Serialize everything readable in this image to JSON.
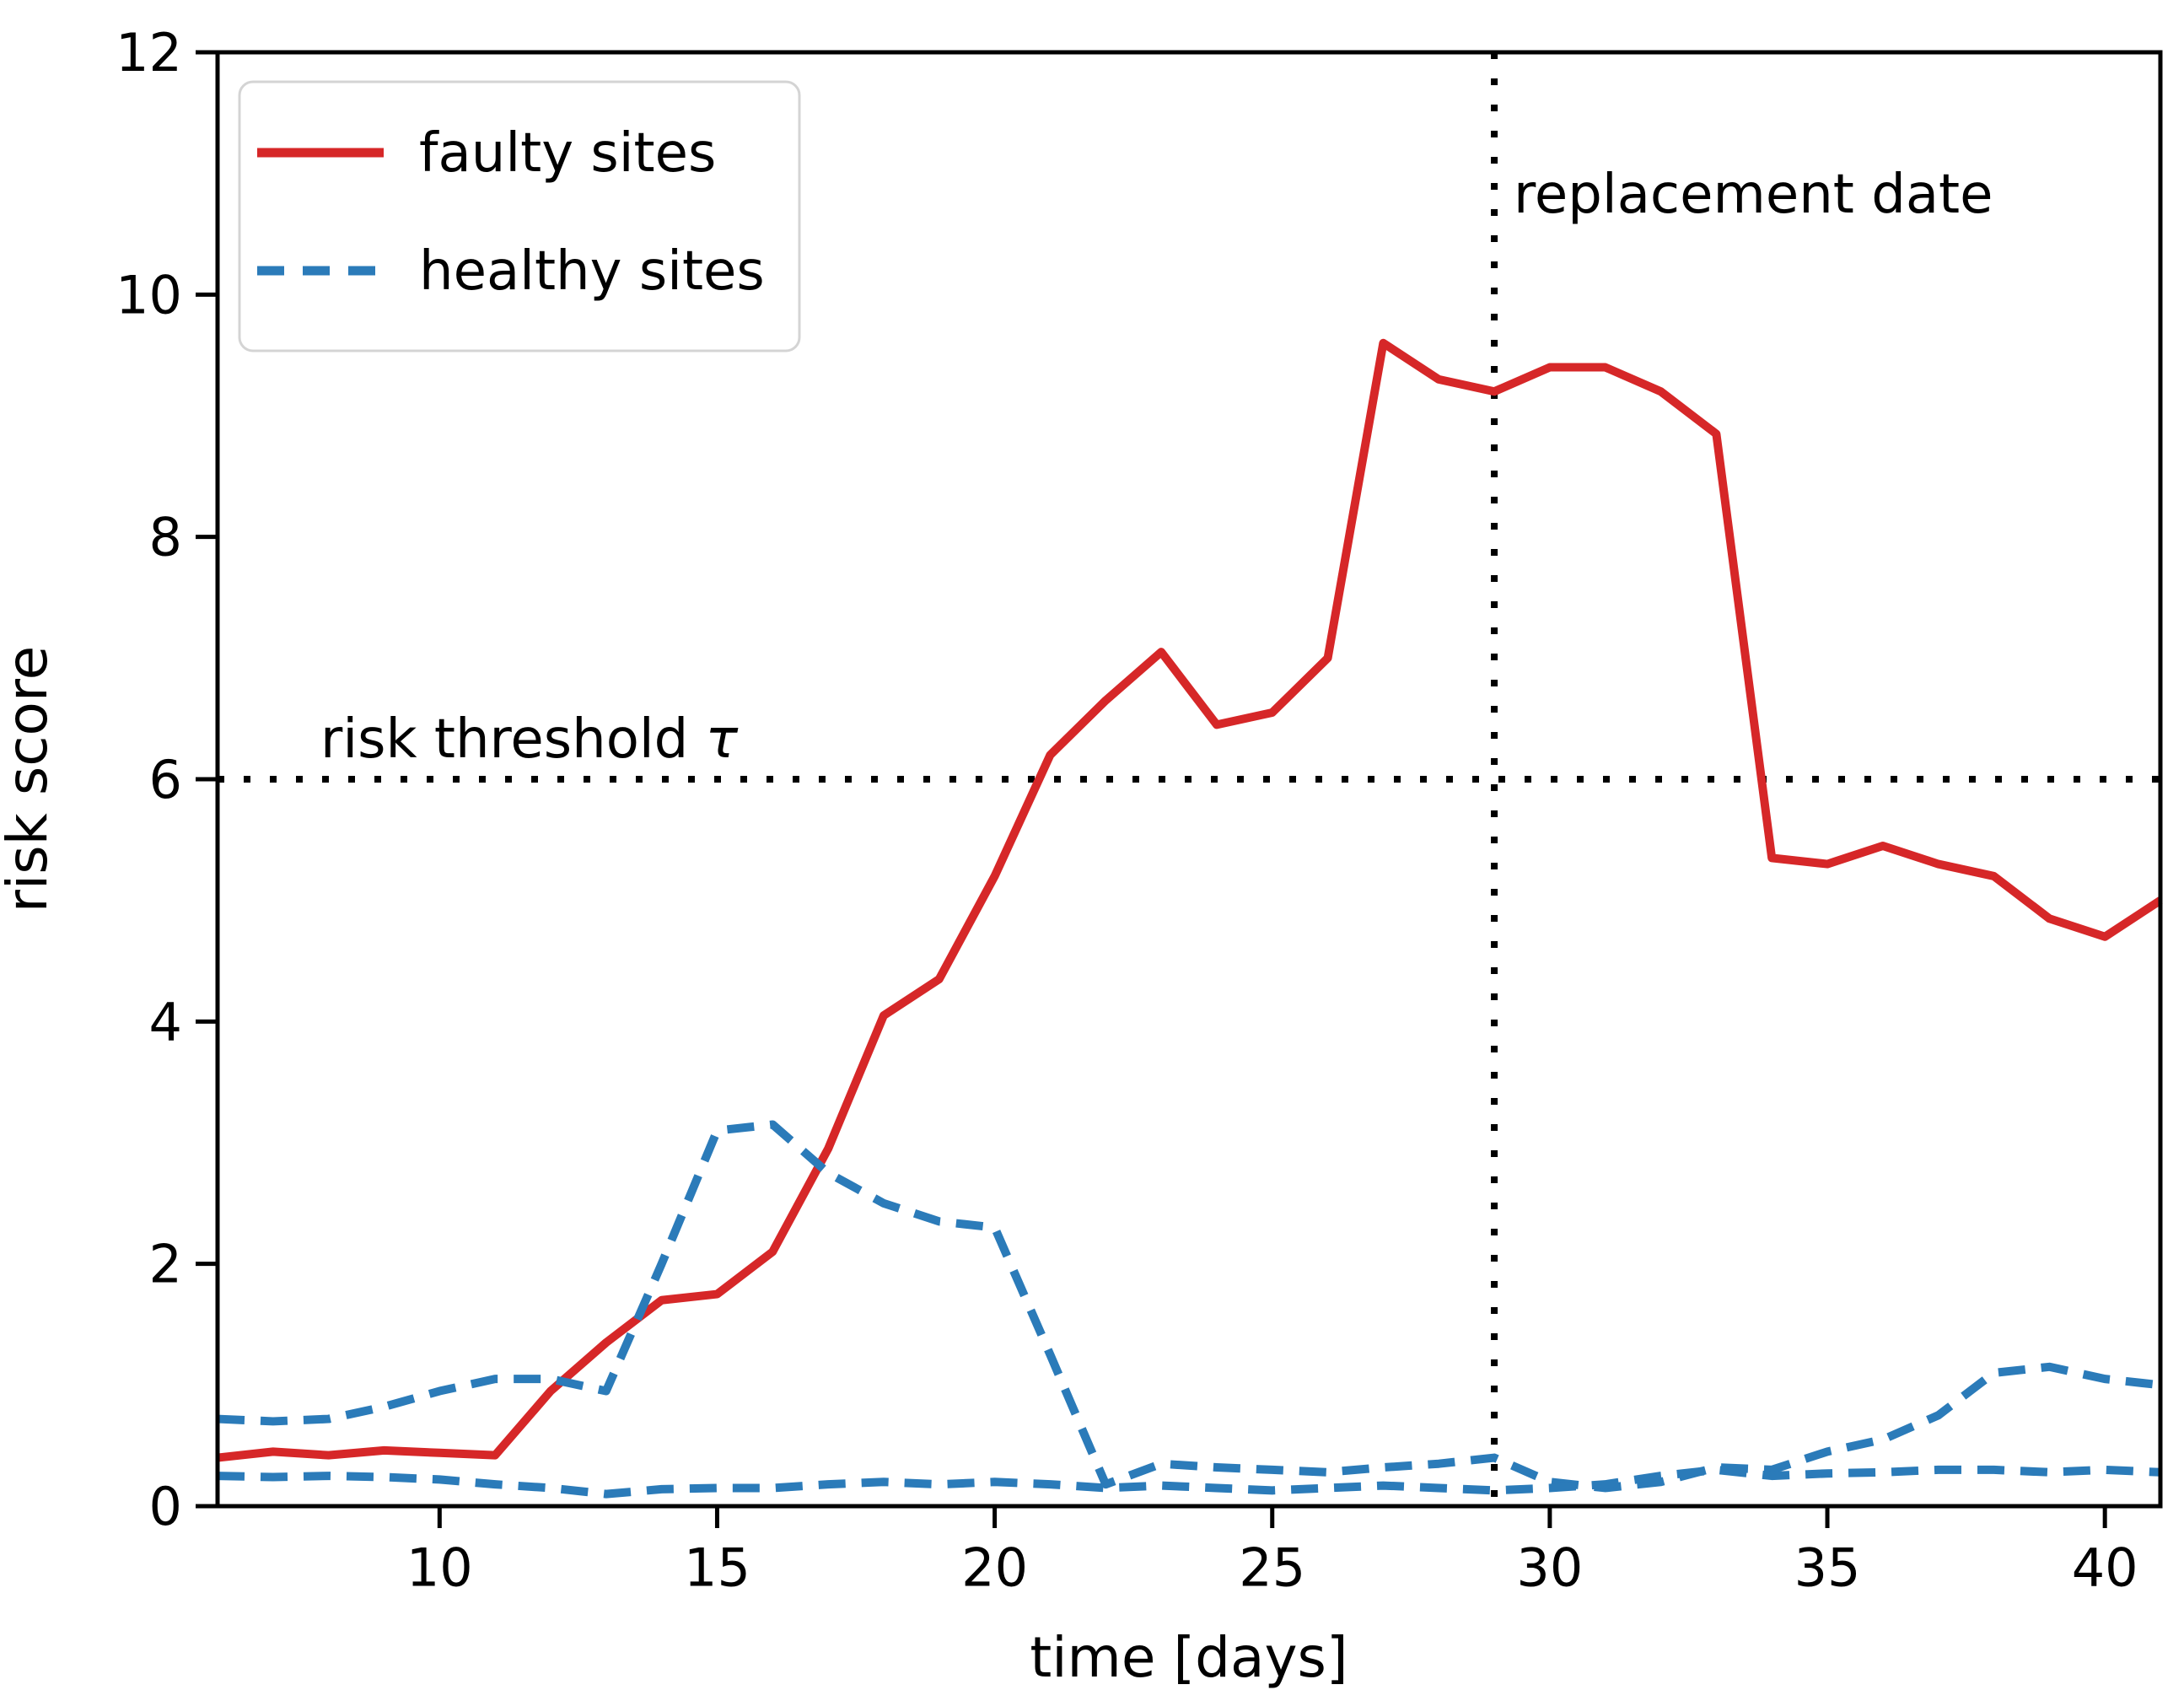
{
  "chart_data": {
    "type": "line",
    "title": "",
    "xlabel": "time [days]",
    "ylabel": "risk score",
    "xlim": [
      6,
      41
    ],
    "ylim": [
      0,
      12
    ],
    "x_ticks": [
      10,
      15,
      20,
      25,
      30,
      35,
      40
    ],
    "y_ticks": [
      0,
      2,
      4,
      6,
      8,
      10,
      12
    ],
    "grid": false,
    "legend_position": "upper-left",
    "legend_entries": [
      "faulty sites",
      "healthy sites"
    ],
    "colors": {
      "faulty": "#d62728",
      "healthy": "#2b7bb9",
      "axis": "#000000",
      "annotation": "#000000",
      "legend_border": "#d4d4d4"
    },
    "x": [
      6,
      7,
      8,
      9,
      10,
      11,
      12,
      13,
      14,
      15,
      16,
      17,
      18,
      19,
      20,
      21,
      22,
      23,
      24,
      25,
      26,
      27,
      28,
      29,
      30,
      31,
      32,
      33,
      34,
      35,
      36,
      37,
      38,
      39,
      40,
      41
    ],
    "series": [
      {
        "name": "faulty sites",
        "color": "#d62728",
        "style": "solid",
        "values": [
          0.4,
          0.45,
          0.42,
          0.46,
          0.44,
          0.42,
          0.95,
          1.35,
          1.7,
          1.75,
          2.1,
          2.95,
          4.05,
          4.35,
          5.2,
          6.2,
          6.65,
          7.05,
          6.45,
          6.55,
          7.0,
          9.6,
          9.3,
          9.2,
          9.4,
          9.4,
          9.2,
          8.85,
          5.35,
          5.3,
          5.45,
          5.3,
          5.2,
          4.85,
          4.7,
          5.0
        ]
      },
      {
        "name": "healthy sites",
        "color": "#2b7bb9",
        "style": "dashed",
        "values": [
          0.72,
          0.7,
          0.72,
          0.82,
          0.95,
          1.05,
          1.05,
          0.95,
          2.0,
          3.1,
          3.15,
          2.75,
          2.5,
          2.35,
          2.3,
          1.25,
          0.18,
          0.35,
          0.32,
          0.3,
          0.28,
          0.32,
          0.35,
          0.4,
          0.2,
          0.15,
          0.2,
          0.32,
          0.3,
          0.45,
          0.55,
          0.75,
          1.1,
          1.15,
          1.05,
          1.0
        ]
      },
      {
        "name": "healthy sites",
        "color": "#2b7bb9",
        "style": "dashed",
        "in_legend": false,
        "values": [
          0.25,
          0.24,
          0.25,
          0.24,
          0.22,
          0.18,
          0.15,
          0.1,
          0.14,
          0.15,
          0.15,
          0.18,
          0.2,
          0.18,
          0.2,
          0.18,
          0.15,
          0.17,
          0.15,
          0.13,
          0.15,
          0.17,
          0.15,
          0.13,
          0.15,
          0.18,
          0.25,
          0.3,
          0.25,
          0.27,
          0.28,
          0.3,
          0.3,
          0.28,
          0.3,
          0.28
        ]
      }
    ],
    "annotations": {
      "threshold": {
        "y": 6,
        "label_text": "risk threshold ",
        "label_symbol": "τ"
      },
      "replacement": {
        "x": 29,
        "label": "replacement date"
      }
    }
  }
}
